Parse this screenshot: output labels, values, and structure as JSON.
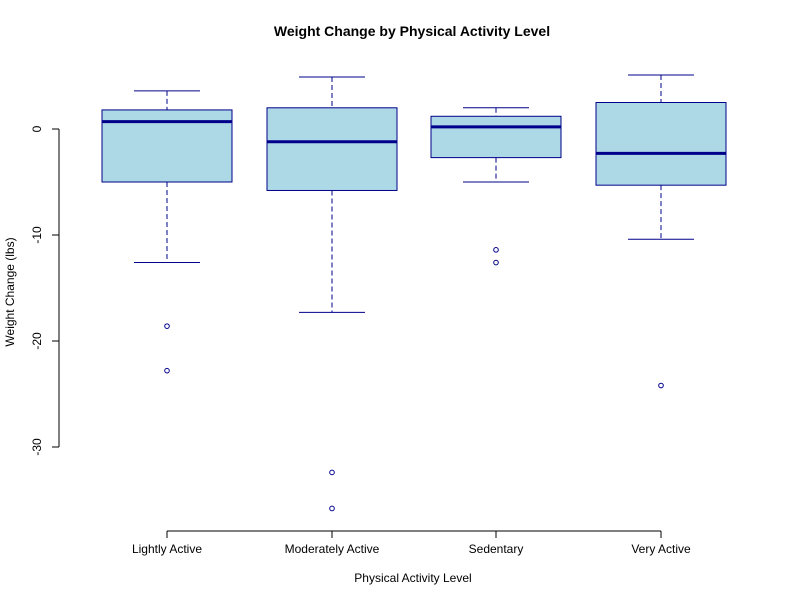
{
  "chart_data": {
    "type": "box",
    "title": "Weight Change by Physical Activity Level",
    "xlabel": "Physical Activity Level",
    "ylabel": "Weight Change (lbs)",
    "ylim": [
      -37,
      5.5
    ],
    "yticks": [
      0,
      -10,
      -20,
      -30
    ],
    "ytick_labels": [
      "0",
      "-10",
      "-20",
      "-30"
    ],
    "grid": false,
    "colors": {
      "box_fill": "#add8e6",
      "box_border": "#00008b",
      "median": "#00008b",
      "axis": "#000000"
    },
    "categories": [
      "Lightly Active",
      "Moderately Active",
      "Sedentary",
      "Very Active"
    ],
    "boxes": [
      {
        "category": "Lightly Active",
        "whisker_low": -12.6,
        "q1": -5.0,
        "median": 0.7,
        "q3": 1.8,
        "whisker_high": 3.6,
        "outliers": [
          -18.6,
          -22.8
        ]
      },
      {
        "category": "Moderately Active",
        "whisker_low": -17.3,
        "q1": -5.8,
        "median": -1.2,
        "q3": 2.0,
        "whisker_high": 4.9,
        "outliers": [
          -32.4,
          -35.8
        ]
      },
      {
        "category": "Sedentary",
        "whisker_low": -5.0,
        "q1": -2.7,
        "median": 0.2,
        "q3": 1.2,
        "whisker_high": 2.0,
        "outliers": [
          -11.4,
          -12.6
        ]
      },
      {
        "category": "Very Active",
        "whisker_low": -10.4,
        "q1": -5.3,
        "median": -2.3,
        "q3": 2.5,
        "whisker_high": 5.1,
        "outliers": [
          -24.2
        ]
      }
    ]
  }
}
